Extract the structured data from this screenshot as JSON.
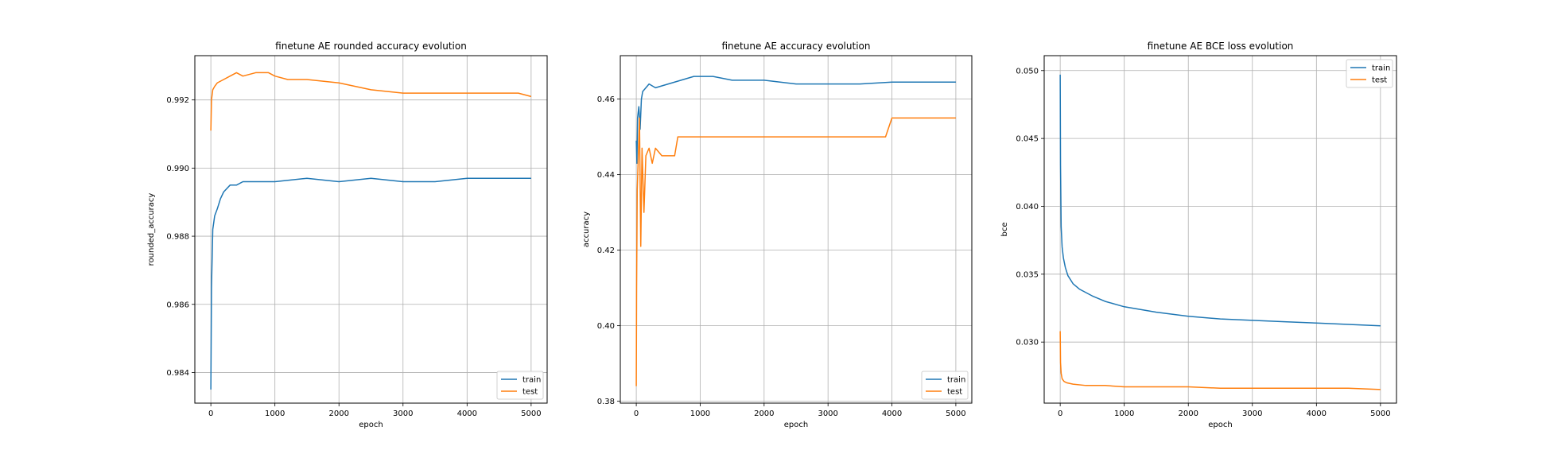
{
  "chart_data": [
    {
      "type": "line",
      "title": "finetune AE rounded accuracy evolution",
      "xlabel": "epoch",
      "ylabel": "rounded_accuracy",
      "xlim": [
        -250,
        5250
      ],
      "ylim": [
        0.9831,
        0.9933
      ],
      "xticks": [
        0,
        1000,
        2000,
        3000,
        4000,
        5000
      ],
      "yticks": [
        0.984,
        0.986,
        0.988,
        0.99,
        0.992
      ],
      "ytick_labels": [
        "0.984",
        "0.986",
        "0.988",
        "0.990",
        "0.992"
      ],
      "grid": true,
      "legend": "lower-right",
      "series": [
        {
          "name": "train",
          "color": "#1f77b4",
          "x": [
            0,
            10,
            30,
            60,
            100,
            150,
            200,
            300,
            400,
            500,
            600,
            800,
            1000,
            1500,
            2000,
            2500,
            3000,
            3500,
            4000,
            4500,
            5000
          ],
          "y": [
            0.9835,
            0.9865,
            0.9882,
            0.9886,
            0.9888,
            0.9891,
            0.9893,
            0.9895,
            0.9895,
            0.9896,
            0.9896,
            0.9896,
            0.9896,
            0.9897,
            0.9896,
            0.9897,
            0.9896,
            0.9896,
            0.9897,
            0.9897,
            0.9897
          ]
        },
        {
          "name": "test",
          "color": "#ff7f0e",
          "x": [
            0,
            10,
            30,
            60,
            100,
            200,
            300,
            400,
            500,
            700,
            900,
            1000,
            1200,
            1500,
            2000,
            2500,
            3000,
            3500,
            4000,
            4500,
            4800,
            5000
          ],
          "y": [
            0.9911,
            0.992,
            0.9923,
            0.9924,
            0.9925,
            0.9926,
            0.9927,
            0.9928,
            0.9927,
            0.9928,
            0.9928,
            0.9927,
            0.9926,
            0.9926,
            0.9925,
            0.9923,
            0.9922,
            0.9922,
            0.9922,
            0.9922,
            0.9922,
            0.9921
          ]
        }
      ]
    },
    {
      "type": "line",
      "title": "finetune AE accuracy evolution",
      "xlabel": "epoch",
      "ylabel": "accuracy",
      "xlim": [
        -250,
        5250
      ],
      "ylim": [
        0.3795,
        0.4715
      ],
      "xticks": [
        0,
        1000,
        2000,
        3000,
        4000,
        5000
      ],
      "yticks": [
        0.38,
        0.4,
        0.42,
        0.44,
        0.46
      ],
      "ytick_labels": [
        "0.38",
        "0.40",
        "0.42",
        "0.44",
        "0.46"
      ],
      "grid": true,
      "legend": "lower-right",
      "series": [
        {
          "name": "train",
          "color": "#1f77b4",
          "x": [
            0,
            10,
            20,
            40,
            60,
            80,
            100,
            150,
            200,
            300,
            500,
            700,
            900,
            1000,
            1200,
            1500,
            2000,
            2500,
            3000,
            3500,
            4000,
            4500,
            5000
          ],
          "y": [
            0.449,
            0.443,
            0.455,
            0.458,
            0.452,
            0.46,
            0.462,
            0.463,
            0.464,
            0.463,
            0.464,
            0.465,
            0.466,
            0.466,
            0.466,
            0.465,
            0.465,
            0.464,
            0.464,
            0.464,
            0.4645,
            0.4645,
            0.4645
          ]
        },
        {
          "name": "test",
          "color": "#ff7f0e",
          "x": [
            0,
            5,
            15,
            30,
            50,
            70,
            90,
            120,
            150,
            200,
            250,
            300,
            400,
            500,
            600,
            650,
            1000,
            2000,
            2600,
            3000,
            3500,
            3900,
            4000,
            5000
          ],
          "y": [
            0.384,
            0.41,
            0.436,
            0.444,
            0.455,
            0.421,
            0.447,
            0.43,
            0.445,
            0.447,
            0.443,
            0.447,
            0.445,
            0.445,
            0.445,
            0.45,
            0.45,
            0.45,
            0.45,
            0.45,
            0.45,
            0.45,
            0.455,
            0.455
          ]
        }
      ]
    },
    {
      "type": "line",
      "title": "finetune AE BCE loss evolution",
      "xlabel": "epoch",
      "ylabel": "bce",
      "xlim": [
        -250,
        5250
      ],
      "ylim": [
        0.0255,
        0.0511
      ],
      "xticks": [
        0,
        1000,
        2000,
        3000,
        4000,
        5000
      ],
      "yticks": [
        0.03,
        0.035,
        0.04,
        0.045,
        0.05
      ],
      "ytick_labels": [
        "0.030",
        "0.035",
        "0.040",
        "0.045",
        "0.050"
      ],
      "grid": true,
      "legend": "upper-right",
      "series": [
        {
          "name": "train",
          "color": "#1f77b4",
          "x": [
            0,
            5,
            15,
            30,
            50,
            80,
            120,
            200,
            300,
            500,
            700,
            1000,
            1500,
            2000,
            2500,
            3000,
            3500,
            4000,
            4500,
            5000
          ],
          "y": [
            0.0497,
            0.043,
            0.0385,
            0.037,
            0.0362,
            0.0355,
            0.0349,
            0.0343,
            0.0339,
            0.0334,
            0.033,
            0.0326,
            0.0322,
            0.0319,
            0.0317,
            0.0316,
            0.0315,
            0.0314,
            0.0313,
            0.0312
          ]
        },
        {
          "name": "test",
          "color": "#ff7f0e",
          "x": [
            0,
            5,
            15,
            30,
            60,
            100,
            200,
            400,
            700,
            1000,
            1500,
            2000,
            2500,
            3000,
            3500,
            4000,
            4500,
            5000
          ],
          "y": [
            0.0308,
            0.0285,
            0.0277,
            0.0273,
            0.0271,
            0.027,
            0.0269,
            0.0268,
            0.0268,
            0.0267,
            0.0267,
            0.0267,
            0.0266,
            0.0266,
            0.0266,
            0.0266,
            0.0266,
            0.0265
          ]
        }
      ]
    }
  ]
}
